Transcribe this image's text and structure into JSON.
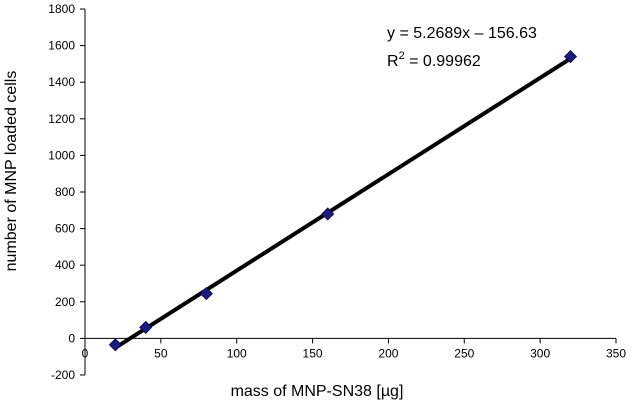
{
  "chart_data": {
    "type": "scatter",
    "title": "",
    "xlabel": "mass of MNP-SN38 [µg]",
    "ylabel": "number of MNP loaded cells",
    "xlim": [
      0,
      350
    ],
    "ylim": [
      -200,
      1800
    ],
    "x_ticks": [
      0,
      50,
      100,
      150,
      200,
      250,
      300,
      350
    ],
    "y_ticks": [
      -200,
      0,
      200,
      400,
      600,
      800,
      1000,
      1200,
      1400,
      1600,
      1800
    ],
    "grid": false,
    "series": [
      {
        "name": "MNP loaded cells",
        "marker": "diamond",
        "color": "#1a1a80",
        "x": [
          20,
          40,
          80,
          160,
          320
        ],
        "y": [
          -35,
          60,
          245,
          680,
          1540
        ]
      }
    ],
    "trendline": {
      "slope": 5.2689,
      "intercept": -156.63,
      "x_range": [
        20,
        320
      ],
      "color": "#000000",
      "equation_text": "y = 5.2689x – 156.63",
      "r2_prefix": "R",
      "r2_sup": "2",
      "r2_value": " = 0.99962"
    }
  }
}
